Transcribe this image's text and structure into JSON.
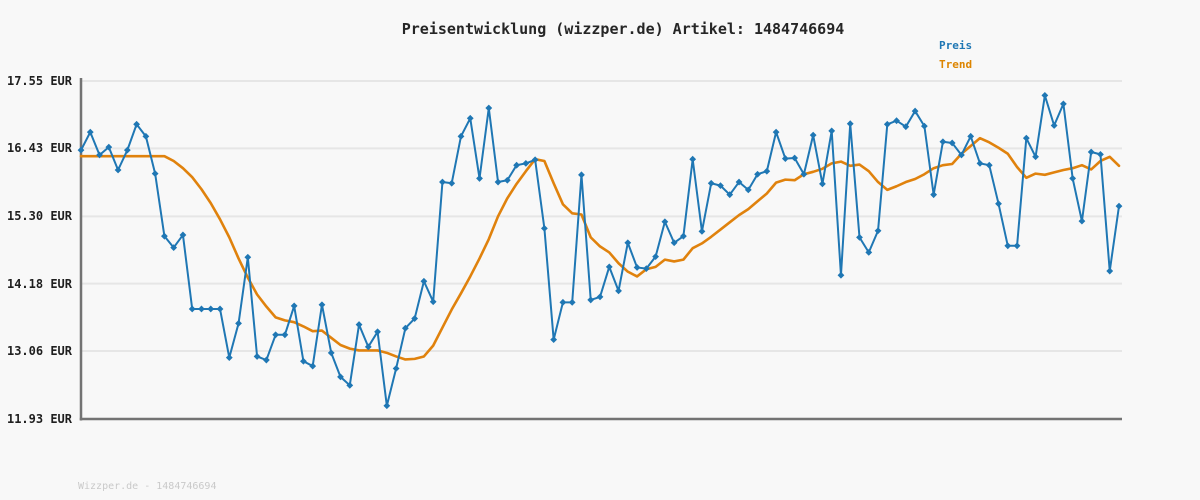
{
  "header": {
    "title": "Preisentwicklung (wizzper.de) Artikel: 1484746694"
  },
  "legend": {
    "position": "top-right",
    "items": [
      {
        "label": "Preis",
        "color": "#1f77b4"
      },
      {
        "label": "Trend",
        "color": "#dd8500"
      }
    ]
  },
  "footer": {
    "watermark": "Wizzper.de - 1484746694"
  },
  "colors": {
    "background": "#f8f8f8",
    "grid": "#e6e6e6",
    "axis": "#737373",
    "price_line": "#1f77b4",
    "trend_line": "#e0820d",
    "title_text": "#262626",
    "tick_text": "#1f1f1f",
    "watermark_text": "#c9c9c9"
  },
  "chart_data": {
    "type": "line",
    "title": "Preisentwicklung (wizzper.de) Artikel: 1484746694",
    "grid": true,
    "legend_position": "top-right",
    "x_axis": {
      "visible_labels": false,
      "num_points": 113
    },
    "y_axis": {
      "unit": "EUR",
      "ylim": [
        11.93,
        17.55
      ],
      "tick_labels": [
        "17.55 EUR",
        "16.43 EUR",
        "15.30 EUR",
        "14.18 EUR",
        "13.06 EUR",
        "11.93 EUR"
      ],
      "tick_values": [
        17.55,
        16.43,
        15.3,
        14.18,
        13.06,
        11.93
      ]
    },
    "series": [
      {
        "name": "Preis",
        "color": "#1f77b4",
        "marker": "diamond",
        "line_width": 2,
        "values": [
          16.4,
          16.7,
          16.32,
          16.45,
          16.07,
          16.4,
          16.83,
          16.63,
          16.01,
          14.97,
          14.78,
          14.99,
          13.76,
          13.76,
          13.76,
          13.76,
          12.95,
          13.52,
          14.62,
          12.97,
          12.91,
          13.33,
          13.33,
          13.81,
          12.89,
          12.81,
          13.83,
          13.03,
          12.63,
          12.49,
          13.5,
          13.13,
          13.38,
          12.15,
          12.77,
          13.44,
          13.6,
          14.22,
          13.88,
          15.87,
          15.85,
          16.63,
          16.93,
          15.93,
          17.1,
          15.87,
          15.9,
          16.15,
          16.18,
          16.24,
          15.1,
          13.25,
          13.87,
          13.87,
          15.99,
          13.91,
          13.96,
          14.46,
          14.06,
          14.86,
          14.45,
          14.43,
          14.63,
          15.21,
          14.86,
          14.97,
          16.25,
          15.05,
          15.85,
          15.81,
          15.66,
          15.87,
          15.74,
          16.0,
          16.05,
          16.7,
          16.26,
          16.27,
          16.0,
          16.65,
          15.84,
          16.72,
          14.32,
          16.84,
          14.95,
          14.7,
          15.06,
          16.83,
          16.89,
          16.79,
          17.05,
          16.8,
          15.66,
          16.54,
          16.52,
          16.32,
          16.63,
          16.18,
          16.15,
          15.51,
          14.81,
          14.81,
          16.6,
          16.29,
          17.31,
          16.81,
          17.17,
          15.93,
          15.22,
          16.37,
          16.33,
          14.39,
          15.47
        ]
      },
      {
        "name": "Trend",
        "color": "#e0820d",
        "marker": "none",
        "line_width": 2.6,
        "values": [
          16.3,
          16.3,
          16.3,
          16.3,
          16.3,
          16.3,
          16.3,
          16.3,
          16.3,
          16.3,
          16.22,
          16.1,
          15.95,
          15.75,
          15.52,
          15.25,
          14.95,
          14.6,
          14.28,
          14.0,
          13.8,
          13.62,
          13.57,
          13.54,
          13.47,
          13.39,
          13.4,
          13.28,
          13.16,
          13.1,
          13.07,
          13.07,
          13.07,
          13.03,
          12.97,
          12.92,
          12.93,
          12.97,
          13.15,
          13.45,
          13.75,
          14.02,
          14.3,
          14.6,
          14.92,
          15.3,
          15.6,
          15.84,
          16.05,
          16.25,
          16.22,
          15.85,
          15.5,
          15.35,
          15.33,
          14.95,
          14.8,
          14.7,
          14.52,
          14.38,
          14.3,
          14.42,
          14.46,
          14.58,
          14.55,
          14.58,
          14.77,
          14.85,
          14.96,
          15.08,
          15.2,
          15.32,
          15.42,
          15.55,
          15.68,
          15.86,
          15.91,
          15.9,
          16.0,
          16.04,
          16.09,
          16.18,
          16.21,
          16.14,
          16.16,
          16.05,
          15.87,
          15.74,
          15.8,
          15.87,
          15.92,
          16.0,
          16.1,
          16.15,
          16.17,
          16.34,
          16.47,
          16.6,
          16.53,
          16.44,
          16.34,
          16.12,
          15.94,
          16.01,
          15.99,
          16.03,
          16.07,
          16.1,
          16.15,
          16.08,
          16.22,
          16.29,
          16.14
        ]
      }
    ]
  }
}
